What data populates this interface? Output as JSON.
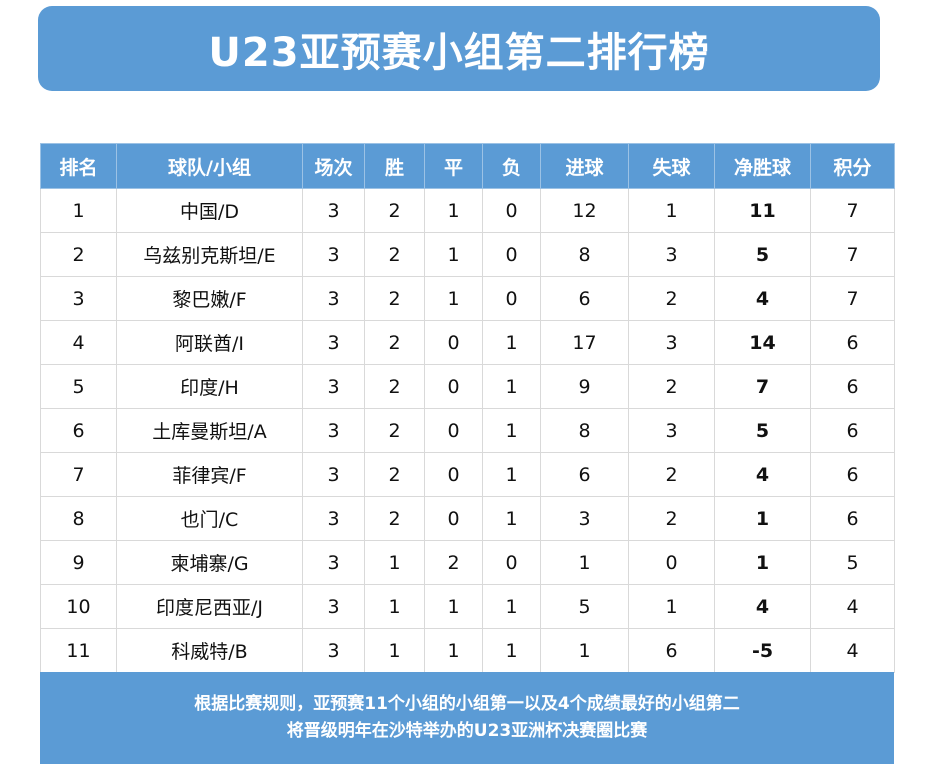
{
  "title": "U23亚预赛小组第二排行榜",
  "colors": {
    "accent": "#5b9bd5",
    "header_text": "#ffffff",
    "border": "#d9d9d9"
  },
  "table": {
    "headers": [
      "排名",
      "球队/小组",
      "场次",
      "胜",
      "平",
      "负",
      "进球",
      "失球",
      "净胜球",
      "积分"
    ],
    "rows": [
      [
        "1",
        "中国/D",
        "3",
        "2",
        "1",
        "0",
        "12",
        "1",
        "11",
        "7"
      ],
      [
        "2",
        "乌兹别克斯坦/E",
        "3",
        "2",
        "1",
        "0",
        "8",
        "3",
        "5",
        "7"
      ],
      [
        "3",
        "黎巴嫩/F",
        "3",
        "2",
        "1",
        "0",
        "6",
        "2",
        "4",
        "7"
      ],
      [
        "4",
        "阿联酋/I",
        "3",
        "2",
        "0",
        "1",
        "17",
        "3",
        "14",
        "6"
      ],
      [
        "5",
        "印度/H",
        "3",
        "2",
        "0",
        "1",
        "9",
        "2",
        "7",
        "6"
      ],
      [
        "6",
        "土库曼斯坦/A",
        "3",
        "2",
        "0",
        "1",
        "8",
        "3",
        "5",
        "6"
      ],
      [
        "7",
        "菲律宾/F",
        "3",
        "2",
        "0",
        "1",
        "6",
        "2",
        "4",
        "6"
      ],
      [
        "8",
        "也门/C",
        "3",
        "2",
        "0",
        "1",
        "3",
        "2",
        "1",
        "6"
      ],
      [
        "9",
        "柬埔寨/G",
        "3",
        "1",
        "2",
        "0",
        "1",
        "0",
        "1",
        "5"
      ],
      [
        "10",
        "印度尼西亚/J",
        "3",
        "1",
        "1",
        "1",
        "5",
        "1",
        "4",
        "4"
      ],
      [
        "11",
        "科威特/B",
        "3",
        "1",
        "1",
        "1",
        "1",
        "6",
        "-5",
        "4"
      ]
    ]
  },
  "footer": {
    "line1": "根据比赛规则，亚预赛11个小组的小组第一以及4个成绩最好的小组第二",
    "line2": "将晋级明年在沙特举办的U23亚洲杯决赛圈比赛"
  }
}
